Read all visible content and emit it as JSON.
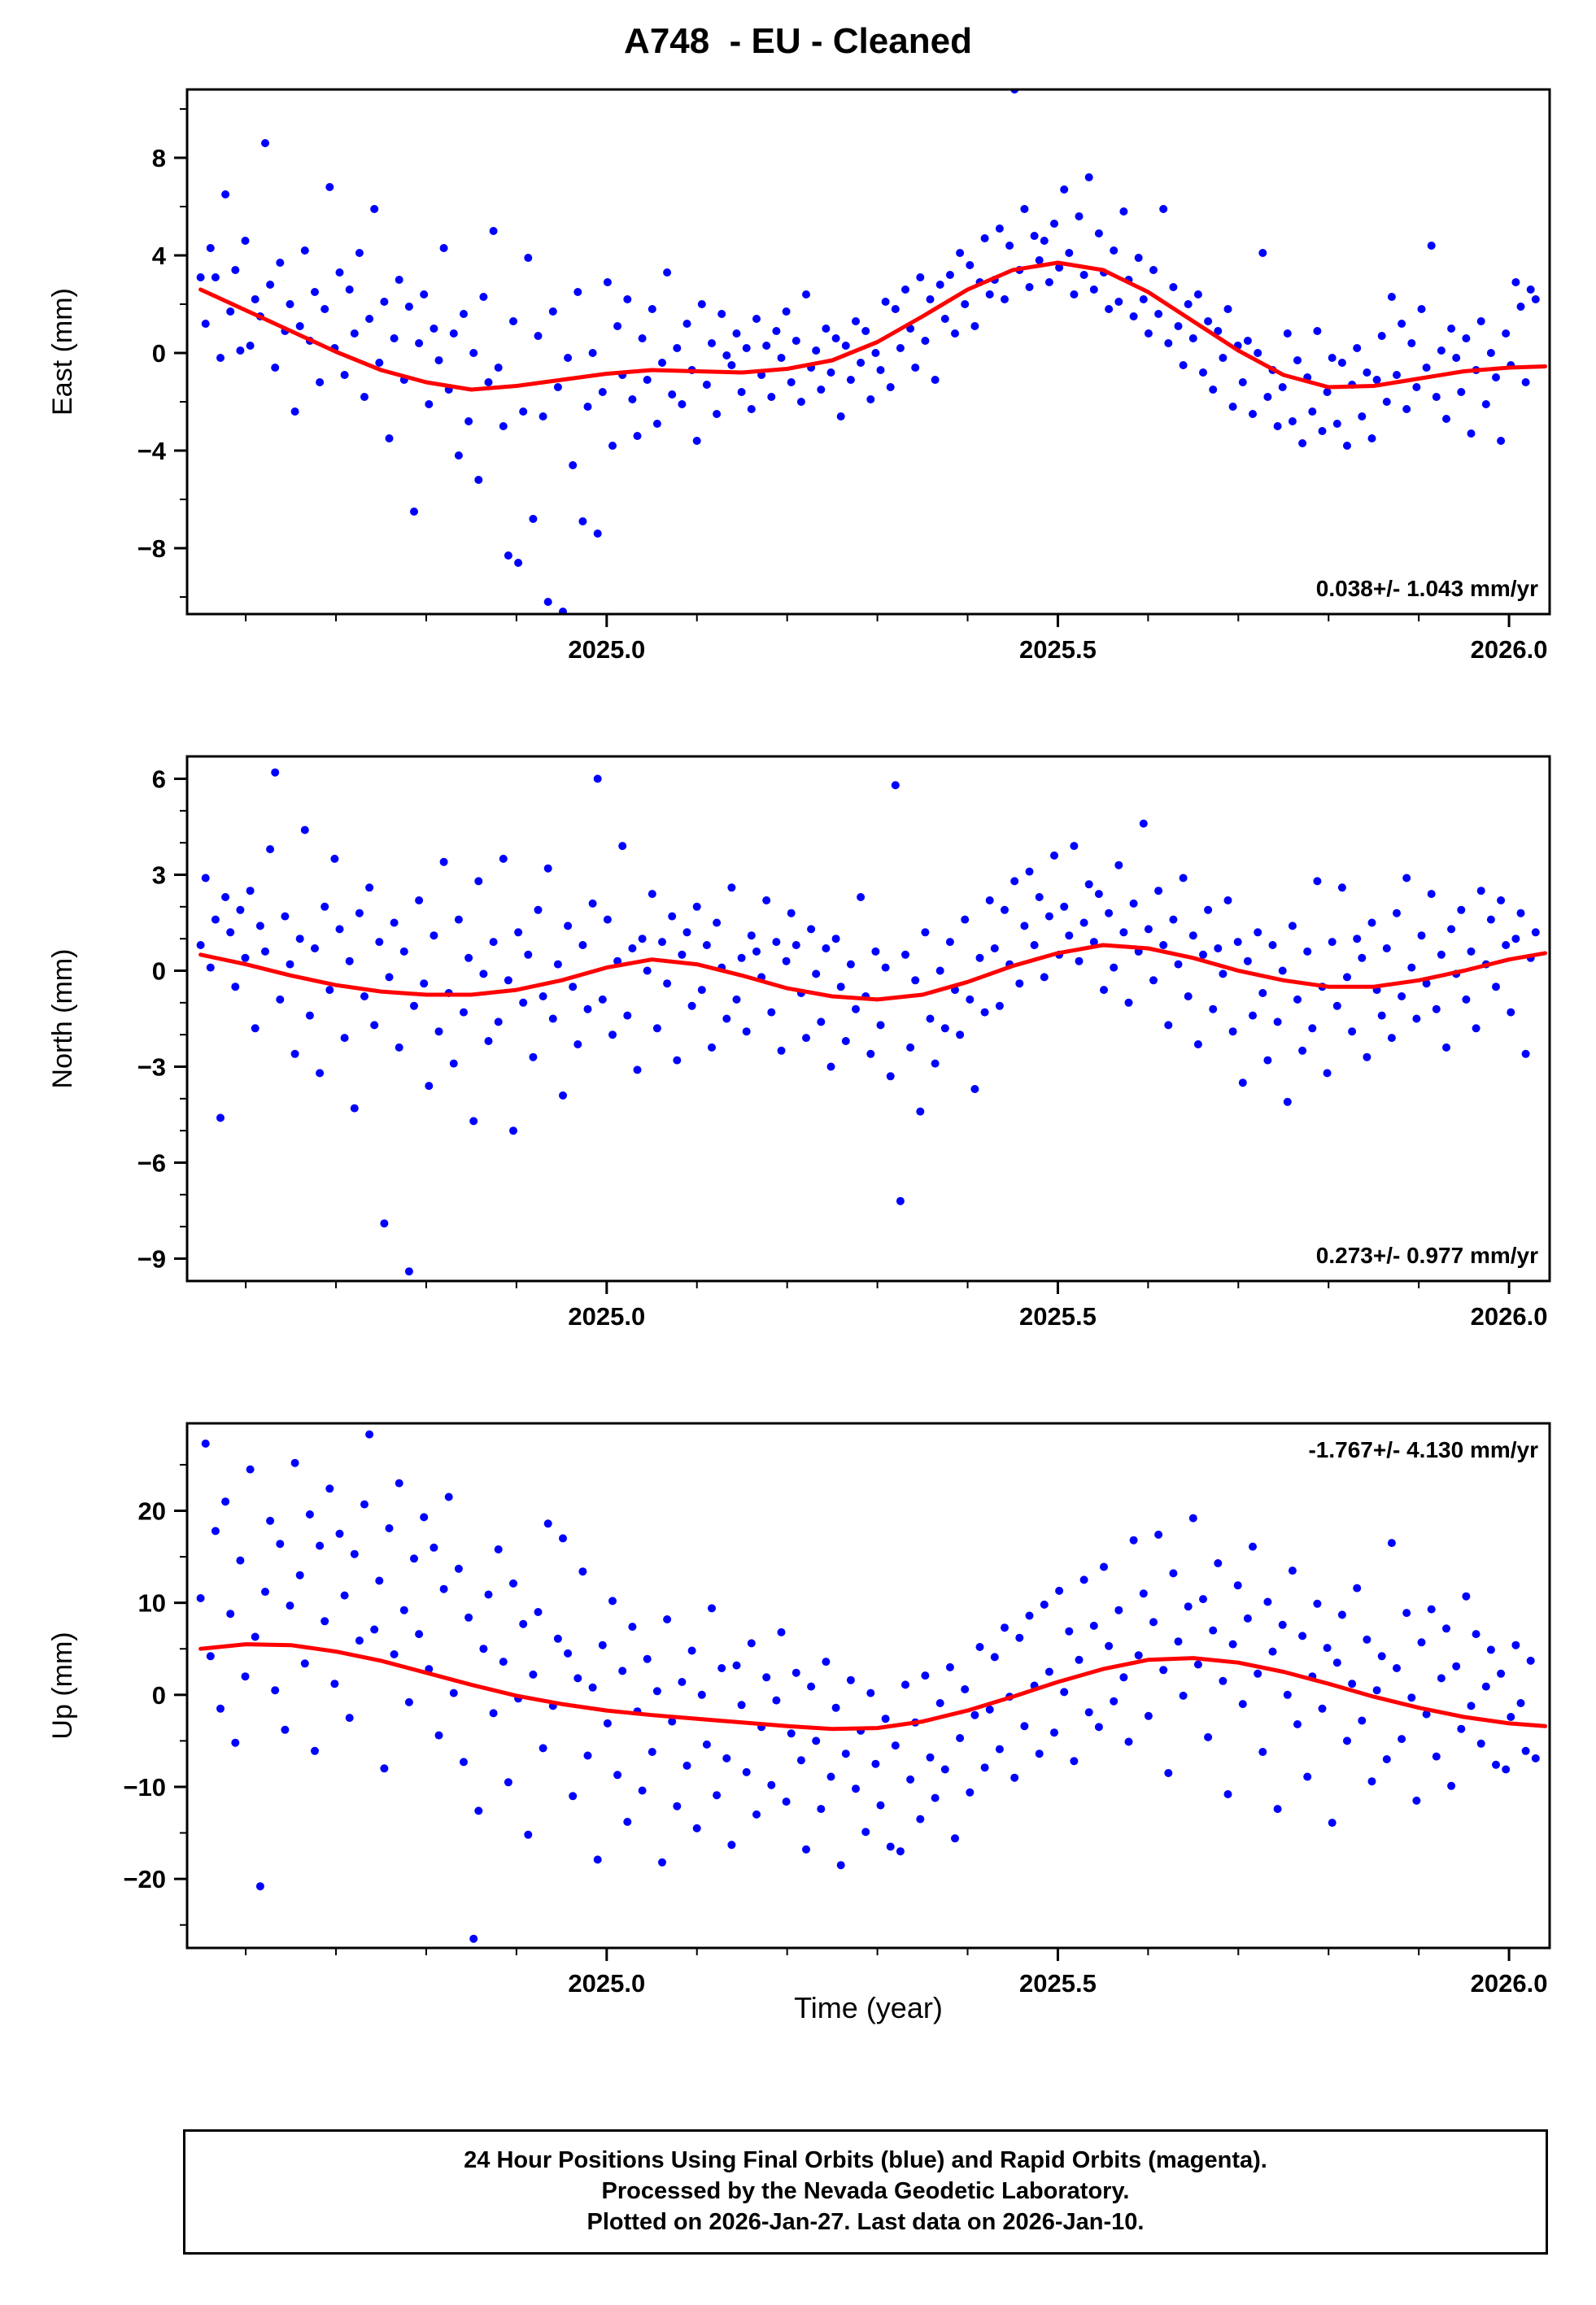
{
  "title": "A748  - EU - Cleaned",
  "xlabel": "Time (year)",
  "caption": {
    "line1": "24 Hour Positions Using Final Orbits (blue) and Rapid Orbits (magenta).",
    "line2": "Processed by the Nevada Geodetic Laboratory.",
    "line3": "Plotted on 2026-Jan-27. Last data on 2026-Jan-10."
  },
  "colors": {
    "points": "#0000ff",
    "trend": "#ff0000",
    "frame": "#000000"
  },
  "chart_data": [
    {
      "type": "scatter",
      "name": "east",
      "ylabel": "East (mm)",
      "rate_label": "0.038+/- 1.043 mm/yr",
      "rate_label_position": "bottom-right",
      "xlim": [
        2024.535,
        2026.045
      ],
      "ylim": [
        -10.7,
        10.8
      ],
      "xticks": [
        2025.0,
        2025.5,
        2026.0
      ],
      "xtick_labels": [
        "2025.0",
        "2025.5",
        "2026.0"
      ],
      "yticks": [
        -8,
        -4,
        0,
        4,
        8
      ],
      "x_minor": 0.1,
      "y_minor": 2,
      "t_start": 2024.55,
      "t_step": 0.0055,
      "scatter_y": [
        3.1,
        1.2,
        4.3,
        3.1,
        -0.2,
        6.5,
        1.7,
        3.4,
        0.1,
        4.6,
        0.3,
        2.2,
        1.5,
        8.6,
        2.8,
        -0.6,
        3.7,
        0.9,
        2.0,
        -2.4,
        1.1,
        4.2,
        0.5,
        2.5,
        -1.2,
        1.8,
        6.8,
        0.2,
        3.3,
        -0.9,
        2.6,
        0.8,
        4.1,
        -1.8,
        1.4,
        5.9,
        -0.4,
        2.1,
        -3.5,
        0.6,
        3.0,
        -1.1,
        1.9,
        -6.5,
        0.4,
        2.4,
        -2.1,
        1.0,
        -0.3,
        4.3,
        -1.5,
        0.8,
        -4.2,
        1.6,
        -2.8,
        0.0,
        -5.2,
        2.3,
        -1.2,
        5.0,
        -0.6,
        -3.0,
        -8.3,
        1.3,
        -8.6,
        -2.4,
        3.9,
        -6.8,
        0.7,
        -2.6,
        -10.2,
        1.7,
        -1.4,
        -10.6,
        -0.2,
        -4.6,
        2.5,
        -6.9,
        -2.2,
        0.0,
        -7.4,
        -1.6,
        2.9,
        -3.8,
        1.1,
        -0.9,
        2.2,
        -1.9,
        -3.4,
        0.6,
        -1.1,
        1.8,
        -2.9,
        -0.4,
        3.3,
        -1.7,
        0.2,
        -2.1,
        1.2,
        -0.7,
        -3.6,
        2.0,
        -1.3,
        0.4,
        -2.5,
        1.6,
        -0.1,
        -0.5,
        0.8,
        -1.6,
        0.2,
        -2.3,
        1.4,
        -0.9,
        0.3,
        -1.8,
        0.9,
        -0.2,
        1.7,
        -1.2,
        0.5,
        -2.0,
        2.4,
        -0.6,
        0.1,
        -1.5,
        1.0,
        -0.8,
        0.6,
        -2.6,
        0.3,
        -1.1,
        1.3,
        -0.4,
        0.9,
        -1.9,
        0.0,
        -0.7,
        2.1,
        -1.4,
        1.8,
        0.2,
        2.6,
        1.0,
        -0.6,
        3.1,
        0.5,
        2.2,
        -1.1,
        2.8,
        1.4,
        3.2,
        0.8,
        4.1,
        2.0,
        3.6,
        1.1,
        2.9,
        4.7,
        2.4,
        3.0,
        5.1,
        2.2,
        4.4,
        10.8,
        3.4,
        5.9,
        2.7,
        4.8,
        3.8,
        4.6,
        2.9,
        5.3,
        3.5,
        6.7,
        4.1,
        2.4,
        5.6,
        3.2,
        7.2,
        2.6,
        4.9,
        3.3,
        1.8,
        4.2,
        2.1,
        5.8,
        3.0,
        1.5,
        3.9,
        2.2,
        0.8,
        3.4,
        1.6,
        5.9,
        0.4,
        2.7,
        1.1,
        -0.5,
        2.0,
        0.6,
        2.4,
        -0.8,
        1.3,
        -1.5,
        0.9,
        -0.2,
        1.8,
        -2.2,
        0.3,
        -1.2,
        0.5,
        -2.5,
        0.0,
        4.1,
        -1.8,
        -0.7,
        -3.0,
        -1.4,
        0.8,
        -2.8,
        -0.3,
        -3.7,
        -1.0,
        -2.4,
        0.9,
        -3.2,
        -1.6,
        -0.2,
        -2.9,
        -0.4,
        -3.8,
        -1.3,
        0.2,
        -2.6,
        -0.8,
        -3.5,
        -1.1,
        0.7,
        -2.0,
        2.3,
        -0.9,
        1.2,
        -2.3,
        0.4,
        -1.4,
        1.8,
        -0.6,
        4.4,
        -1.8,
        0.1,
        -2.7,
        1.0,
        -0.2,
        -1.6,
        0.6,
        -3.3,
        -0.7,
        1.3,
        -2.1,
        0.0,
        -1.0,
        -3.6,
        0.8,
        -0.5,
        2.9,
        1.9,
        -1.2,
        2.6,
        2.2
      ],
      "trend": [
        [
          2024.55,
          2.6
        ],
        [
          2024.6,
          1.75
        ],
        [
          2024.65,
          0.9
        ],
        [
          2024.7,
          0.05
        ],
        [
          2024.75,
          -0.7
        ],
        [
          2024.8,
          -1.2
        ],
        [
          2024.85,
          -1.5
        ],
        [
          2024.9,
          -1.35
        ],
        [
          2024.95,
          -1.1
        ],
        [
          2025.0,
          -0.85
        ],
        [
          2025.05,
          -0.7
        ],
        [
          2025.1,
          -0.75
        ],
        [
          2025.15,
          -0.8
        ],
        [
          2025.2,
          -0.65
        ],
        [
          2025.25,
          -0.3
        ],
        [
          2025.3,
          0.45
        ],
        [
          2025.35,
          1.5
        ],
        [
          2025.4,
          2.6
        ],
        [
          2025.45,
          3.4
        ],
        [
          2025.5,
          3.7
        ],
        [
          2025.55,
          3.4
        ],
        [
          2025.6,
          2.5
        ],
        [
          2025.65,
          1.3
        ],
        [
          2025.7,
          0.1
        ],
        [
          2025.75,
          -0.9
        ],
        [
          2025.8,
          -1.4
        ],
        [
          2025.85,
          -1.35
        ],
        [
          2025.9,
          -1.05
        ],
        [
          2025.95,
          -0.75
        ],
        [
          2026.0,
          -0.6
        ],
        [
          2026.04,
          -0.55
        ]
      ]
    },
    {
      "type": "scatter",
      "name": "north",
      "ylabel": "North (mm)",
      "rate_label": "0.273+/- 0.977 mm/yr",
      "rate_label_position": "bottom-right",
      "xlim": [
        2024.535,
        2026.045
      ],
      "ylim": [
        -9.7,
        6.7
      ],
      "xticks": [
        2025.0,
        2025.5,
        2026.0
      ],
      "xtick_labels": [
        "2025.0",
        "2025.5",
        "2026.0"
      ],
      "yticks": [
        -9,
        -6,
        -3,
        0,
        3,
        6
      ],
      "x_minor": 0.1,
      "y_minor": 1,
      "t_start": 2024.55,
      "t_step": 0.0055,
      "scatter_y": [
        0.8,
        2.9,
        0.1,
        1.6,
        -4.6,
        2.3,
        1.2,
        -0.5,
        1.9,
        0.4,
        2.5,
        -1.8,
        1.4,
        0.6,
        3.8,
        6.2,
        -0.9,
        1.7,
        0.2,
        -2.6,
        1.0,
        4.4,
        -1.4,
        0.7,
        -3.2,
        2.0,
        -0.6,
        3.5,
        1.3,
        -2.1,
        0.3,
        -4.3,
        1.8,
        -0.8,
        2.6,
        -1.7,
        0.9,
        -7.9,
        -0.2,
        1.5,
        -2.4,
        0.6,
        -9.4,
        -1.1,
        2.2,
        -0.4,
        -3.6,
        1.1,
        -1.9,
        3.4,
        -0.7,
        -2.9,
        1.6,
        -1.3,
        0.4,
        -4.7,
        2.8,
        -0.1,
        -2.2,
        0.9,
        -1.6,
        3.5,
        -0.3,
        -5.0,
        1.2,
        -1.0,
        0.5,
        -2.7,
        1.9,
        -0.8,
        3.2,
        -1.5,
        0.2,
        -3.9,
        1.4,
        -0.5,
        -2.3,
        0.8,
        -1.2,
        2.1,
        6.0,
        -0.9,
        1.6,
        -2.0,
        0.3,
        3.9,
        -1.4,
        0.7,
        -3.1,
        1.0,
        0.0,
        2.4,
        -1.8,
        0.9,
        -0.4,
        1.7,
        -2.8,
        0.5,
        1.2,
        -1.1,
        2.0,
        -0.6,
        0.8,
        -2.4,
        1.5,
        0.1,
        -1.5,
        2.6,
        -0.9,
        0.4,
        -1.9,
        1.1,
        0.6,
        -0.2,
        2.2,
        -1.3,
        0.9,
        -2.5,
        0.3,
        1.8,
        0.8,
        -0.7,
        -2.1,
        1.3,
        -0.1,
        -1.6,
        0.7,
        -3.0,
        1.0,
        -0.5,
        -2.2,
        0.2,
        -1.2,
        2.3,
        -0.8,
        -2.6,
        0.6,
        -1.7,
        0.1,
        -3.3,
        5.8,
        -7.2,
        0.5,
        -2.4,
        -0.3,
        -4.4,
        1.2,
        -1.5,
        -2.9,
        0.0,
        -1.8,
        0.9,
        -0.6,
        -2.0,
        1.6,
        -0.9,
        -3.7,
        0.4,
        -1.3,
        2.2,
        0.7,
        -1.1,
        1.9,
        0.2,
        2.8,
        -0.4,
        1.4,
        3.1,
        0.8,
        2.3,
        -0.2,
        1.7,
        3.6,
        0.5,
        2.0,
        1.1,
        3.9,
        0.3,
        1.5,
        2.7,
        0.9,
        2.4,
        -0.6,
        1.8,
        0.1,
        3.3,
        1.2,
        -1.0,
        2.1,
        0.6,
        4.6,
        1.3,
        -0.3,
        2.5,
        0.8,
        -1.7,
        1.6,
        0.2,
        2.9,
        -0.8,
        1.1,
        -2.3,
        0.5,
        1.9,
        -1.2,
        0.7,
        -0.1,
        2.2,
        -1.9,
        0.9,
        -3.5,
        0.3,
        -1.4,
        1.2,
        -0.7,
        -2.8,
        0.8,
        -1.6,
        0.0,
        -4.1,
        1.4,
        -0.9,
        -2.5,
        0.6,
        -1.8,
        2.8,
        -0.5,
        -3.2,
        0.9,
        -1.1,
        2.6,
        -0.2,
        -1.9,
        1.0,
        0.4,
        -2.7,
        1.5,
        -0.6,
        -1.4,
        0.7,
        -2.1,
        1.8,
        -0.8,
        2.9,
        0.1,
        -1.5,
        1.1,
        -0.4,
        2.4,
        -1.2,
        0.5,
        -2.4,
        1.3,
        -0.1,
        1.9,
        -0.9,
        0.6,
        -1.8,
        2.5,
        0.2,
        1.6,
        -0.5,
        2.2,
        0.8,
        -1.3,
        1.0,
        1.8,
        -2.6,
        0.4,
        1.2
      ],
      "trend": [
        [
          2024.55,
          0.5
        ],
        [
          2024.6,
          0.2
        ],
        [
          2024.65,
          -0.15
        ],
        [
          2024.7,
          -0.45
        ],
        [
          2024.75,
          -0.65
        ],
        [
          2024.8,
          -0.75
        ],
        [
          2024.85,
          -0.75
        ],
        [
          2024.9,
          -0.6
        ],
        [
          2024.95,
          -0.3
        ],
        [
          2025.0,
          0.1
        ],
        [
          2025.05,
          0.35
        ],
        [
          2025.1,
          0.2
        ],
        [
          2025.15,
          -0.15
        ],
        [
          2025.2,
          -0.55
        ],
        [
          2025.25,
          -0.8
        ],
        [
          2025.3,
          -0.9
        ],
        [
          2025.35,
          -0.75
        ],
        [
          2025.4,
          -0.35
        ],
        [
          2025.45,
          0.15
        ],
        [
          2025.5,
          0.55
        ],
        [
          2025.55,
          0.8
        ],
        [
          2025.6,
          0.7
        ],
        [
          2025.65,
          0.4
        ],
        [
          2025.7,
          0.0
        ],
        [
          2025.75,
          -0.3
        ],
        [
          2025.8,
          -0.5
        ],
        [
          2025.85,
          -0.5
        ],
        [
          2025.9,
          -0.3
        ],
        [
          2025.95,
          0.0
        ],
        [
          2026.0,
          0.35
        ],
        [
          2026.04,
          0.55
        ]
      ]
    },
    {
      "type": "scatter",
      "name": "up",
      "ylabel": "Up (mm)",
      "rate_label": "-1.767+/- 4.130 mm/yr",
      "rate_label_position": "top-right",
      "xlim": [
        2024.535,
        2026.045
      ],
      "ylim": [
        -27.5,
        29.5
      ],
      "xticks": [
        2025.0,
        2025.5,
        2026.0
      ],
      "xtick_labels": [
        "2025.0",
        "2025.5",
        "2026.0"
      ],
      "yticks": [
        -20,
        -10,
        0,
        10,
        20
      ],
      "x_minor": 0.1,
      "y_minor": 5,
      "t_start": 2024.55,
      "t_step": 0.0055,
      "scatter_y": [
        10.5,
        27.3,
        4.2,
        17.8,
        -1.5,
        21.0,
        8.8,
        -5.2,
        14.6,
        2.0,
        24.5,
        6.3,
        -20.8,
        11.2,
        18.9,
        0.5,
        16.4,
        -3.8,
        9.7,
        25.2,
        13.0,
        3.4,
        19.6,
        -6.1,
        16.2,
        8.0,
        22.4,
        1.2,
        17.5,
        10.8,
        -2.5,
        15.3,
        5.9,
        20.7,
        28.3,
        7.1,
        12.4,
        -8.0,
        18.1,
        4.4,
        23.0,
        9.2,
        -0.8,
        14.8,
        6.6,
        19.3,
        2.8,
        16.0,
        -4.4,
        11.5,
        21.5,
        0.2,
        13.7,
        -7.3,
        8.4,
        -26.5,
        -12.6,
        5.0,
        10.9,
        -2.0,
        15.8,
        3.6,
        -9.5,
        12.1,
        -0.4,
        7.7,
        -15.2,
        2.2,
        9.0,
        -5.8,
        18.6,
        -1.2,
        6.1,
        17.0,
        4.5,
        -11.0,
        1.8,
        13.4,
        -6.6,
        0.8,
        -17.9,
        5.4,
        -3.1,
        10.2,
        -8.7,
        2.6,
        -13.8,
        7.4,
        -1.8,
        -10.4,
        3.9,
        -6.2,
        0.4,
        -18.2,
        8.2,
        -2.9,
        -12.1,
        1.4,
        -7.7,
        4.8,
        -14.5,
        0.0,
        -5.4,
        9.4,
        -10.9,
        2.9,
        -6.9,
        -16.3,
        3.2,
        -1.1,
        -8.4,
        5.6,
        -13.0,
        -3.5,
        1.9,
        -9.8,
        -0.6,
        6.8,
        -11.6,
        -4.2,
        2.4,
        -7.1,
        -16.8,
        0.9,
        -5.0,
        -12.4,
        3.6,
        -8.9,
        -1.4,
        -18.5,
        -6.4,
        1.6,
        -10.2,
        -3.9,
        -14.9,
        0.2,
        -7.5,
        -12.0,
        -2.6,
        -16.5,
        -5.5,
        -17.0,
        1.1,
        -9.2,
        -3.0,
        -13.5,
        2.1,
        -6.8,
        -11.2,
        -0.9,
        -8.1,
        3.0,
        -15.6,
        -4.7,
        0.6,
        -10.6,
        -2.2,
        5.2,
        -7.9,
        -1.6,
        4.1,
        -5.9,
        7.3,
        -0.2,
        -9.0,
        6.2,
        -3.4,
        8.6,
        1.0,
        -6.4,
        9.8,
        2.5,
        -4.1,
        11.3,
        0.3,
        6.9,
        -7.2,
        3.8,
        12.5,
        -1.9,
        7.5,
        -3.5,
        13.9,
        5.3,
        -0.7,
        9.2,
        1.9,
        -5.1,
        16.8,
        4.3,
        11.0,
        -2.3,
        7.9,
        17.4,
        2.7,
        -8.5,
        13.2,
        5.8,
        -0.1,
        9.6,
        19.2,
        3.3,
        10.4,
        -4.6,
        7.0,
        14.3,
        1.5,
        -10.8,
        5.5,
        11.9,
        -1.0,
        8.3,
        16.1,
        2.3,
        -6.2,
        10.1,
        4.7,
        -12.4,
        7.6,
        0.0,
        13.5,
        -3.2,
        6.4,
        -8.9,
        2.0,
        9.9,
        -1.5,
        5.1,
        -13.9,
        3.5,
        8.7,
        -5.0,
        1.2,
        11.6,
        -2.8,
        6.0,
        -9.4,
        0.5,
        4.2,
        -7.0,
        16.5,
        2.9,
        -4.8,
        8.9,
        -0.3,
        -11.5,
        5.7,
        -2.1,
        9.3,
        -6.7,
        1.8,
        7.2,
        -9.9,
        3.1,
        -3.7,
        10.7,
        -1.2,
        6.6,
        -5.3,
        0.9,
        4.9,
        -7.6,
        2.3,
        -8.1,
        -2.4,
        5.4,
        -0.9,
        -6.1,
        3.7,
        -6.9
      ],
      "trend": [
        [
          2024.55,
          5.0
        ],
        [
          2024.6,
          5.5
        ],
        [
          2024.65,
          5.4
        ],
        [
          2024.7,
          4.7
        ],
        [
          2024.75,
          3.7
        ],
        [
          2024.8,
          2.4
        ],
        [
          2024.85,
          1.1
        ],
        [
          2024.9,
          -0.1
        ],
        [
          2024.95,
          -1.0
        ],
        [
          2025.0,
          -1.7
        ],
        [
          2025.05,
          -2.2
        ],
        [
          2025.1,
          -2.6
        ],
        [
          2025.15,
          -3.0
        ],
        [
          2025.2,
          -3.4
        ],
        [
          2025.25,
          -3.7
        ],
        [
          2025.3,
          -3.6
        ],
        [
          2025.35,
          -2.9
        ],
        [
          2025.4,
          -1.7
        ],
        [
          2025.45,
          -0.2
        ],
        [
          2025.5,
          1.4
        ],
        [
          2025.55,
          2.8
        ],
        [
          2025.6,
          3.8
        ],
        [
          2025.65,
          4.0
        ],
        [
          2025.7,
          3.5
        ],
        [
          2025.75,
          2.5
        ],
        [
          2025.8,
          1.2
        ],
        [
          2025.85,
          -0.2
        ],
        [
          2025.9,
          -1.4
        ],
        [
          2025.95,
          -2.4
        ],
        [
          2026.0,
          -3.1
        ],
        [
          2026.04,
          -3.4
        ]
      ]
    }
  ]
}
